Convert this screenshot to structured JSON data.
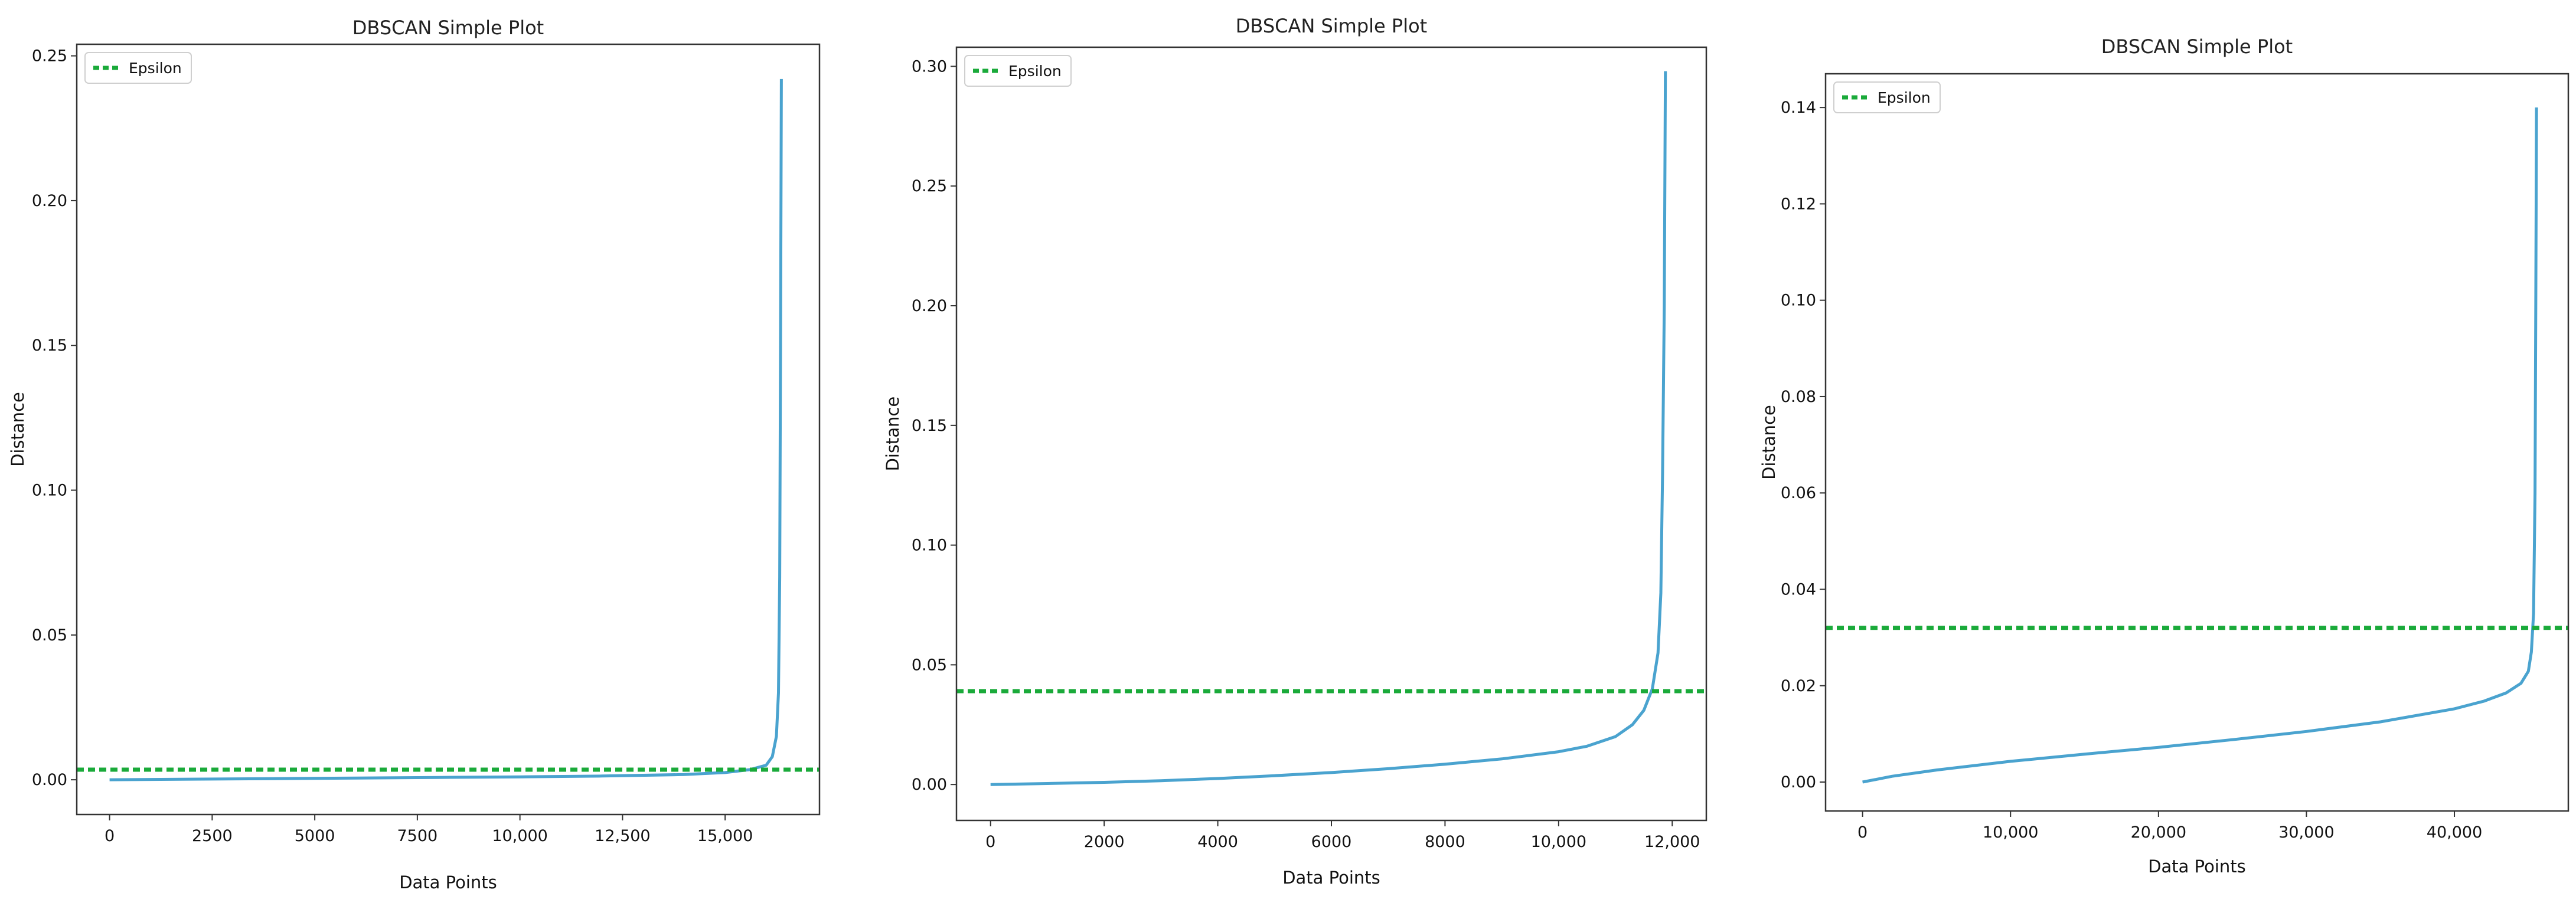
{
  "chart_data": [
    {
      "type": "line",
      "title": "DBSCAN Simple Plot",
      "xlabel": "Data Points",
      "ylabel": "Distance",
      "xlim": [
        -800,
        17300
      ],
      "ylim": [
        -0.012,
        0.254
      ],
      "xticks": [
        0,
        2500,
        5000,
        7500,
        10000,
        12500,
        15000
      ],
      "xtick_labels": [
        "0",
        "2500",
        "5000",
        "7500",
        "10,000",
        "12,500",
        "15,000"
      ],
      "yticks": [
        0.0,
        0.05,
        0.1,
        0.15,
        0.2,
        0.25
      ],
      "ytick_labels": [
        "0.00",
        "0.05",
        "0.10",
        "0.15",
        "0.20",
        "0.25"
      ],
      "grid": false,
      "legend": "top-left",
      "epsilon": {
        "name": "Epsilon",
        "value": 0.0035,
        "color": "#1aaa3a"
      },
      "series": [
        {
          "color": "#4aa3cf",
          "x": [
            0,
            2000,
            4000,
            6000,
            8000,
            10000,
            12000,
            14000,
            15000,
            15600,
            16000,
            16150,
            16250,
            16300,
            16330,
            16350,
            16370
          ],
          "y": [
            0.0,
            0.0002,
            0.0004,
            0.0006,
            0.0008,
            0.001,
            0.0013,
            0.0018,
            0.0025,
            0.0035,
            0.005,
            0.008,
            0.015,
            0.03,
            0.07,
            0.15,
            0.242
          ]
        }
      ]
    },
    {
      "type": "line",
      "title": "DBSCAN Simple Plot",
      "xlabel": "Data Points",
      "ylabel": "Distance",
      "xlim": [
        -600,
        12600
      ],
      "ylim": [
        -0.015,
        0.308
      ],
      "xticks": [
        0,
        2000,
        4000,
        6000,
        8000,
        10000,
        12000
      ],
      "xtick_labels": [
        "0",
        "2000",
        "4000",
        "6000",
        "8000",
        "10,000",
        "12,000"
      ],
      "yticks": [
        0.0,
        0.05,
        0.1,
        0.15,
        0.2,
        0.25,
        0.3
      ],
      "ytick_labels": [
        "0.00",
        "0.05",
        "0.10",
        "0.15",
        "0.20",
        "0.25",
        "0.30"
      ],
      "grid": false,
      "legend": "top-left",
      "epsilon": {
        "name": "Epsilon",
        "value": 0.039,
        "color": "#1aaa3a"
      },
      "series": [
        {
          "color": "#4aa3cf",
          "x": [
            0,
            1000,
            2000,
            3000,
            4000,
            5000,
            6000,
            7000,
            8000,
            9000,
            10000,
            10500,
            11000,
            11300,
            11500,
            11650,
            11750,
            11800,
            11830,
            11860,
            11880
          ],
          "y": [
            0.0,
            0.0004,
            0.0009,
            0.0016,
            0.0025,
            0.0037,
            0.005,
            0.0066,
            0.0085,
            0.0107,
            0.0137,
            0.016,
            0.02,
            0.025,
            0.031,
            0.04,
            0.055,
            0.08,
            0.13,
            0.2,
            0.298
          ]
        }
      ]
    },
    {
      "type": "line",
      "title": "DBSCAN Simple Plot",
      "xlabel": "Data Points",
      "ylabel": "Distance",
      "xlim": [
        -2500,
        47700
      ],
      "ylim": [
        -0.006,
        0.147
      ],
      "xticks": [
        0,
        10000,
        20000,
        30000,
        40000
      ],
      "xtick_labels": [
        "0",
        "10,000",
        "20,000",
        "30,000",
        "40,000"
      ],
      "yticks": [
        0.0,
        0.02,
        0.04,
        0.06,
        0.08,
        0.1,
        0.12,
        0.14
      ],
      "ytick_labels": [
        "0.00",
        "0.02",
        "0.04",
        "0.06",
        "0.08",
        "0.10",
        "0.12",
        "0.14"
      ],
      "grid": false,
      "legend": "top-left",
      "epsilon": {
        "name": "Epsilon",
        "value": 0.032,
        "color": "#1aaa3a"
      },
      "series": [
        {
          "color": "#4aa3cf",
          "x": [
            0,
            2000,
            5000,
            10000,
            15000,
            20000,
            25000,
            30000,
            35000,
            40000,
            42000,
            43500,
            44500,
            45000,
            45200,
            45350,
            45450,
            45500,
            45550
          ],
          "y": [
            0.0,
            0.0012,
            0.0025,
            0.0043,
            0.0058,
            0.0072,
            0.0088,
            0.0105,
            0.0125,
            0.0152,
            0.0168,
            0.0185,
            0.0205,
            0.023,
            0.027,
            0.035,
            0.06,
            0.1,
            0.14
          ]
        }
      ]
    }
  ]
}
